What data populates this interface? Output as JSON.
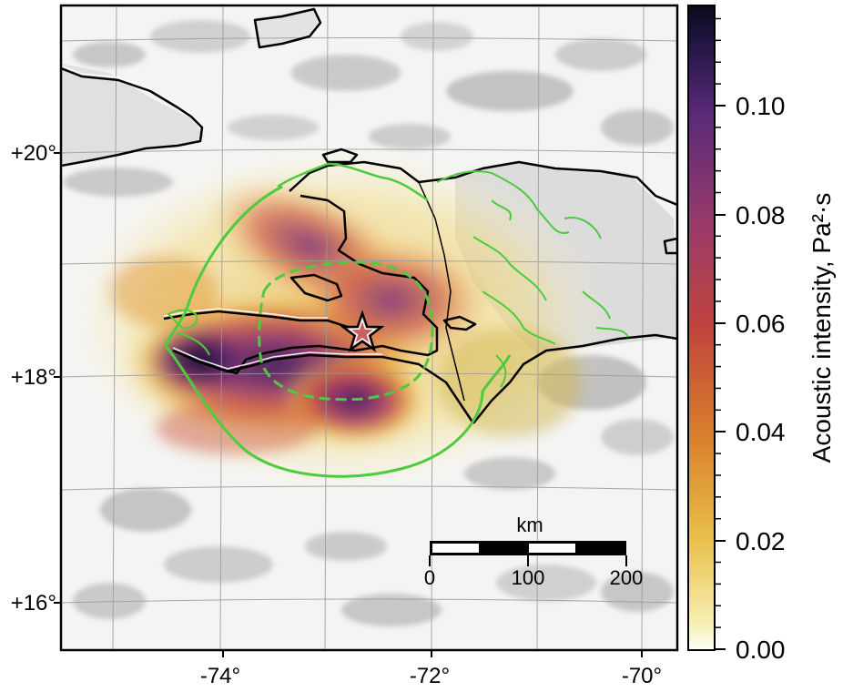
{
  "map": {
    "lon_ticks": [
      "-74°",
      "-72°",
      "-70°"
    ],
    "lat_ticks": [
      "+20°",
      "+18°",
      "+16°"
    ]
  },
  "colorbar": {
    "label": "Acoustic intensity, Pa²·s",
    "ticks": [
      "0.10",
      "0.08",
      "0.06",
      "0.04",
      "0.02",
      "0.00"
    ],
    "colormap": [
      "#ffffff",
      "#f6e88a",
      "#e7b43a",
      "#d9772c",
      "#b93b4f",
      "#8a2f6e",
      "#4a1f6a",
      "#14102e"
    ]
  },
  "scale_bar": {
    "unit": "km",
    "ticks": [
      "0",
      "100",
      "200"
    ]
  },
  "colors": {
    "contour": "#4ccc3d",
    "coastline": "#000000",
    "grid": "#9a9a9a",
    "epicenter_fill": "#e8d0c0"
  },
  "icons": {
    "epicenter": "star-icon"
  }
}
